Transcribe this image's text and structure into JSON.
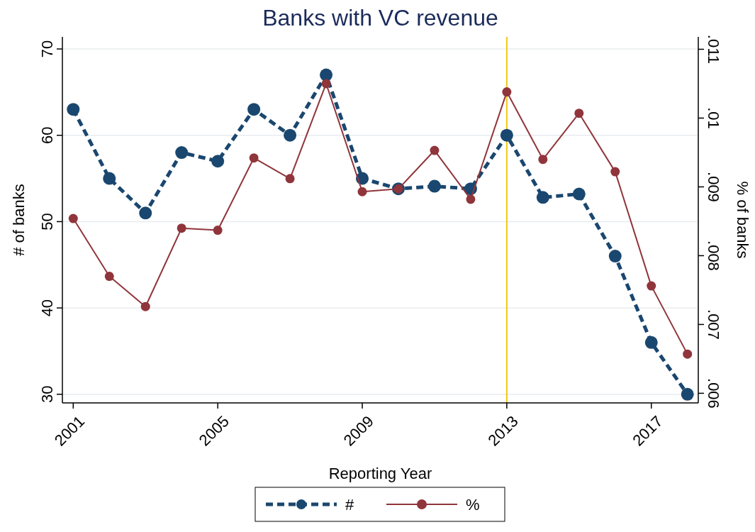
{
  "chart_data": {
    "type": "line",
    "title": "Banks with VC revenue",
    "xlabel": "Reporting Year",
    "ylabel": "# of banks",
    "y2label": "% of banks",
    "x": [
      2001,
      2002,
      2003,
      2004,
      2005,
      2006,
      2007,
      2008,
      2009,
      2010,
      2011,
      2012,
      2013,
      2014,
      2015,
      2016,
      2017,
      2018
    ],
    "series": [
      {
        "name": "#",
        "color": "#1a476f",
        "line_style": "dashed",
        "marker": "circle",
        "values": [
          63,
          55,
          51,
          58,
          57,
          63,
          60,
          67,
          55,
          53.8,
          54.1,
          53.8,
          60,
          52.8,
          53.2,
          46,
          36,
          30
        ]
      },
      {
        "name": "%",
        "color": "#90353b",
        "line_style": "solid",
        "marker": "circle",
        "axis": "y2",
        "values": [
          0.00854,
          0.0077,
          0.00726,
          0.0084,
          0.00837,
          0.00942,
          0.00912,
          0.0105,
          0.00893,
          0.00897,
          0.00953,
          0.00882,
          0.01038,
          0.0094,
          0.01007,
          0.00922,
          0.00756,
          0.00657
        ]
      }
    ],
    "xlim": [
      2000.7,
      2018.3
    ],
    "xticks": [
      2001,
      2005,
      2009,
      2013,
      2017
    ],
    "ylim": [
      29,
      71.4
    ],
    "yticks": [
      30,
      40,
      50,
      60,
      70
    ],
    "y2lim": [
      0.00586,
      0.01118
    ],
    "y2ticks": [
      {
        "value": 0.006,
        "label": ".006"
      },
      {
        "value": 0.007,
        "label": ".007"
      },
      {
        "value": 0.008,
        "label": ".008"
      },
      {
        "value": 0.009,
        "label": ".009"
      },
      {
        "value": 0.01,
        "label": ".01"
      },
      {
        "value": 0.011,
        "label": ".011"
      }
    ],
    "ref_lines": [
      {
        "axis": "x",
        "value": 2013,
        "color": "#f0c814"
      }
    ],
    "grid": "y",
    "legend": "bottom"
  }
}
